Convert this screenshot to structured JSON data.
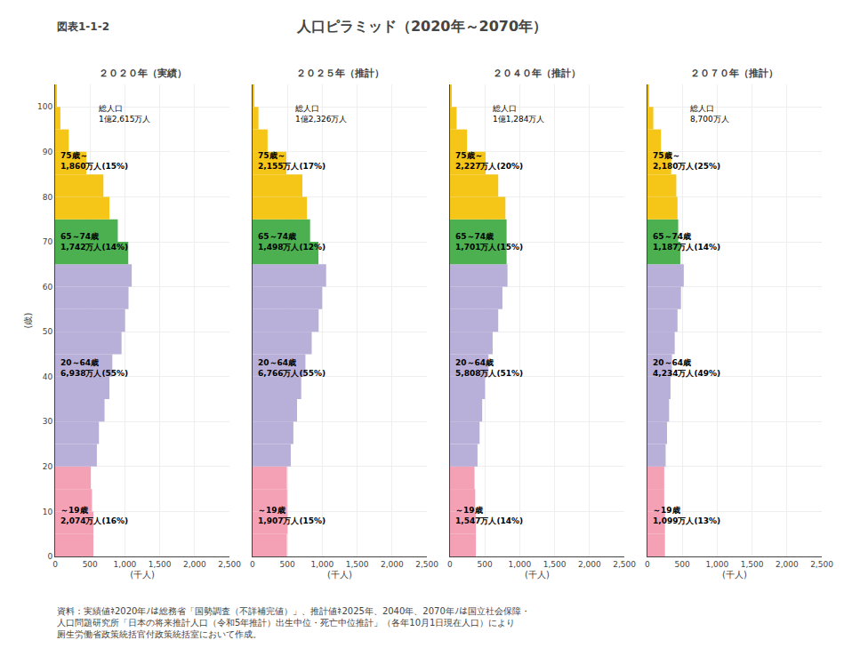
{
  "title": "人口ピラミッド（2020年～2070年）",
  "header": "図表1-1-2",
  "footnote": "資料：実績値ﾈ2020年ﾉは総務省「国勢調査（不詳補完値）」、推計値ﾈ2025年、2040年、2070年ﾉは国立社会保障・\n人口問題研究所「日本の将来推計人口（令和5年推計）出生中位・死亡中位推計」（各年10月1日現在人口）により\n厕生労働省政策統括官付政策統括室において作成。",
  "chart_data": [
    {
      "type": "bar",
      "orientation": "horizontal",
      "title": "２０２０年（実績）",
      "xlabel": "(千人)",
      "ylabel": "(歳)",
      "x": [
        0,
        5,
        10,
        15,
        20,
        25,
        30,
        35,
        40,
        45,
        50,
        55,
        60,
        65,
        70,
        75,
        80,
        85,
        90,
        95,
        100
      ],
      "values": [
        548,
        548,
        528,
        512,
        598,
        628,
        708,
        778,
        820,
        952,
        1002,
        1052,
        1098,
        1048,
        898,
        778,
        692,
        448,
        195,
        75,
        15
      ],
      "colors": [
        "#F4A0B5",
        "#F4A0B5",
        "#F4A0B5",
        "#F4A0B5",
        "#B8B0D8",
        "#B8B0D8",
        "#B8B0D8",
        "#B8B0D8",
        "#B8B0D8",
        "#B8B0D8",
        "#B8B0D8",
        "#B8B0D8",
        "#B8B0D8",
        "#4CAF50",
        "#4CAF50",
        "#F5C518",
        "#F5C518",
        "#F5C518",
        "#F5C518",
        "#F5C518",
        "#F5C518"
      ],
      "xlim": [
        0,
        2500
      ],
      "xticks": [
        0,
        500,
        {
          "value": 1000,
          "label": "1,000"
        },
        {
          "value": 1500,
          "label": "1,500"
        },
        {
          "value": 2000,
          "label": "2,000"
        },
        {
          "value": 2500,
          "label": "2,500"
        }
      ],
      "ylim": [
        0,
        105
      ],
      "yticks": [
        0,
        10,
        20,
        30,
        40,
        50,
        60,
        70,
        80,
        90,
        100
      ],
      "grid": true,
      "annotations": [
        "総人口\n1億2,615万人",
        "75歳～\n1,860万人(15%)",
        "65～74歳\n1,742万人(14%)",
        "20～64歳\n6,938万人(55%)",
        "～19歳\n2,074万人(16%)"
      ]
    },
    {
      "type": "bar",
      "orientation": "horizontal",
      "title": "２０２５年（推計）",
      "xlabel": "(千人)",
      "x": [
        0,
        5,
        10,
        15,
        20,
        25,
        30,
        35,
        40,
        45,
        50,
        55,
        60,
        65,
        70,
        75,
        80,
        85,
        90,
        95,
        100
      ],
      "values": [
        492,
        500,
        495,
        492,
        548,
        585,
        638,
        698,
        758,
        848,
        948,
        998,
        1055,
        945,
        825,
        778,
        715,
        485,
        215,
        85,
        20
      ],
      "colors": [
        "#F4A0B5",
        "#F4A0B5",
        "#F4A0B5",
        "#F4A0B5",
        "#B8B0D8",
        "#B8B0D8",
        "#B8B0D8",
        "#B8B0D8",
        "#B8B0D8",
        "#B8B0D8",
        "#B8B0D8",
        "#B8B0D8",
        "#B8B0D8",
        "#4CAF50",
        "#4CAF50",
        "#F5C518",
        "#F5C518",
        "#F5C518",
        "#F5C518",
        "#F5C518",
        "#F5C518"
      ],
      "xlim": [
        0,
        2500
      ],
      "xticks": [
        0,
        500,
        {
          "value": 1000,
          "label": "1,000"
        },
        {
          "value": 1500,
          "label": "1,500"
        },
        {
          "value": 2000,
          "label": "2,000"
        },
        {
          "value": 2500,
          "label": "2,500"
        }
      ],
      "ylim": [
        0,
        105
      ],
      "yticks": [
        0,
        10,
        20,
        30,
        40,
        50,
        60,
        70,
        80,
        90,
        100
      ],
      "grid": true,
      "tick_labels": "x",
      "annotations": [
        "総人口\n1億2,326万人",
        "75歳～\n2,155万人(17%)",
        "65～74歳\n1,498万人(12%)",
        "20～64歳\n6,766万人(55%)",
        "～19歳\n1,907万人(15%)"
      ]
    },
    {
      "type": "bar",
      "orientation": "horizontal",
      "title": "２０４０年（推計）",
      "xlabel": "(千人)",
      "x": [
        0,
        5,
        10,
        15,
        20,
        25,
        30,
        35,
        40,
        45,
        50,
        55,
        60,
        65,
        70,
        75,
        80,
        85,
        90,
        95,
        100
      ],
      "values": [
        372,
        372,
        362,
        352,
        395,
        425,
        462,
        502,
        552,
        612,
        692,
        752,
        825,
        812,
        812,
        795,
        692,
        512,
        245,
        95,
        25
      ],
      "colors": [
        "#F4A0B5",
        "#F4A0B5",
        "#F4A0B5",
        "#F4A0B5",
        "#B8B0D8",
        "#B8B0D8",
        "#B8B0D8",
        "#B8B0D8",
        "#B8B0D8",
        "#B8B0D8",
        "#B8B0D8",
        "#B8B0D8",
        "#B8B0D8",
        "#4CAF50",
        "#4CAF50",
        "#F5C518",
        "#F5C518",
        "#F5C518",
        "#F5C518",
        "#F5C518",
        "#F5C518"
      ],
      "xlim": [
        0,
        2500
      ],
      "xticks": [
        0,
        500,
        {
          "value": 1000,
          "label": "1,000"
        },
        {
          "value": 1500,
          "label": "1,500"
        },
        {
          "value": 2000,
          "label": "2,000"
        },
        {
          "value": 2500,
          "label": "2,500"
        }
      ],
      "ylim": [
        0,
        105
      ],
      "yticks": [
        0,
        10,
        20,
        30,
        40,
        50,
        60,
        70,
        80,
        90,
        100
      ],
      "grid": true,
      "tick_labels": "x",
      "annotations": [
        "総人口\n1億1,284万人",
        "75歳～\n2,227万人(20%)",
        "65～74歳\n1,701万人(15%)",
        "20～64歳\n5,808万人(51%)",
        "～19歳\n1,547万人(14%)"
      ]
    },
    {
      "type": "bar",
      "orientation": "horizontal",
      "title": "２０７０年（推計）",
      "xlabel": "(千人)",
      "x": [
        0,
        5,
        10,
        15,
        20,
        25,
        30,
        35,
        40,
        45,
        50,
        55,
        60,
        65,
        70,
        75,
        80,
        85,
        90,
        95,
        100
      ],
      "values": [
        252,
        252,
        242,
        242,
        262,
        282,
        312,
        332,
        352,
        392,
        432,
        482,
        522,
        472,
        442,
        432,
        415,
        342,
        195,
        85,
        20
      ],
      "colors": [
        "#F4A0B5",
        "#F4A0B5",
        "#F4A0B5",
        "#F4A0B5",
        "#B8B0D8",
        "#B8B0D8",
        "#B8B0D8",
        "#B8B0D8",
        "#B8B0D8",
        "#B8B0D8",
        "#B8B0D8",
        "#B8B0D8",
        "#B8B0D8",
        "#4CAF50",
        "#4CAF50",
        "#F5C518",
        "#F5C518",
        "#F5C518",
        "#F5C518",
        "#F5C518",
        "#F5C518"
      ],
      "xlim": [
        0,
        2500
      ],
      "xticks": [
        0,
        500,
        {
          "value": 1000,
          "label": "1,000"
        },
        {
          "value": 1500,
          "label": "1,500"
        },
        {
          "value": 2000,
          "label": "2,000"
        },
        {
          "value": 2500,
          "label": "2,500"
        }
      ],
      "ylim": [
        0,
        105
      ],
      "yticks": [
        0,
        10,
        20,
        30,
        40,
        50,
        60,
        70,
        80,
        90,
        100
      ],
      "grid": true,
      "tick_labels": "x",
      "annotations": [
        "総人口\n8,700万人",
        "75歳～\n2,180万人(25%)",
        "65～74歳\n1,187万人(14%)",
        "20～64歳\n4,234万人(49%)",
        "～19歳\n1,099万人(13%)"
      ]
    }
  ]
}
